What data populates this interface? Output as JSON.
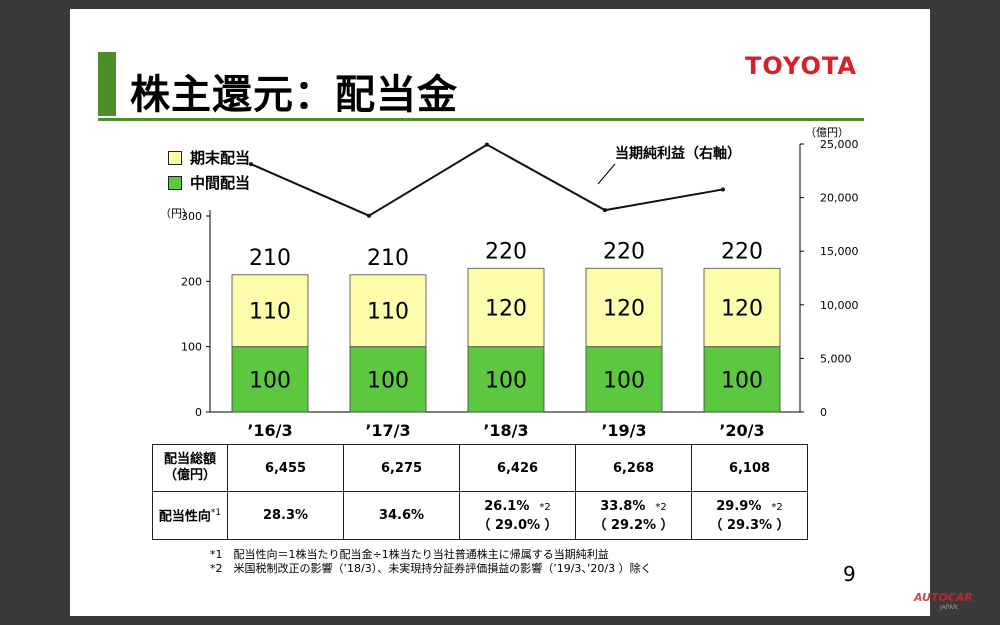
{
  "slide": {
    "title": "株主還元：配当金",
    "logo": "TOYOTA",
    "page_number": "9",
    "colors": {
      "accent_green": "#4c8f2c",
      "bar_green": "#5cc83f",
      "bar_yellow": "#fcfcaa",
      "logo_red": "#d8202a"
    }
  },
  "legend": {
    "final": "期末配当",
    "interim": "中間配当"
  },
  "chart_data": {
    "type": "bar",
    "stacked": true,
    "categories": [
      "’16/3",
      "’17/3",
      "’18/3",
      "’19/3",
      "’20/3"
    ],
    "series": [
      {
        "name": "中間配当",
        "values": [
          100,
          100,
          100,
          100,
          100
        ],
        "color": "#5cc83f"
      },
      {
        "name": "期末配当",
        "values": [
          110,
          110,
          120,
          120,
          120
        ],
        "color": "#fcfcaa"
      }
    ],
    "totals": [
      210,
      210,
      220,
      220,
      220
    ],
    "y_left": {
      "unit": "（円）",
      "ticks": [
        "0",
        "100",
        "200",
        "300"
      ],
      "range": [
        0,
        300
      ]
    },
    "y_right": {
      "unit": "（億円）",
      "ticks": [
        "0",
        "5,000",
        "10,000",
        "15,000",
        "20,000",
        "25,000"
      ],
      "range": [
        0,
        25000
      ]
    },
    "line_series": {
      "name": "当期純利益（右軸）",
      "values": [
        23126,
        18311,
        24939,
        18828,
        20761
      ]
    }
  },
  "table": {
    "row1_header": [
      "配当総額",
      "（億円）"
    ],
    "row1_values": [
      "6,455",
      "6,275",
      "6,426",
      "6,268",
      "6,108"
    ],
    "row2_header": "配当性向",
    "row2_header_note": "*1",
    "row2_values": [
      "28.3%",
      "34.6%",
      "26.1%",
      "33.8%",
      "29.9%"
    ],
    "row2_sub": [
      "",
      "",
      "（ 29.0% ）",
      "（ 29.2% ）",
      "（ 29.3% ）"
    ],
    "row2_note": [
      "",
      "",
      "*2",
      "*2",
      "*2"
    ]
  },
  "notes": [
    "*1　配当性向＝1株当たり配当金÷1株当たり当社普通株主に帰属する当期純利益",
    "*2　米国税制改正の影響（’18/3）、未実現持分証券評価損益の影響（’19/3、’20/3 ）除く"
  ],
  "watermark": {
    "brand": "AUTOCAR",
    "sub": "JAPAN"
  }
}
